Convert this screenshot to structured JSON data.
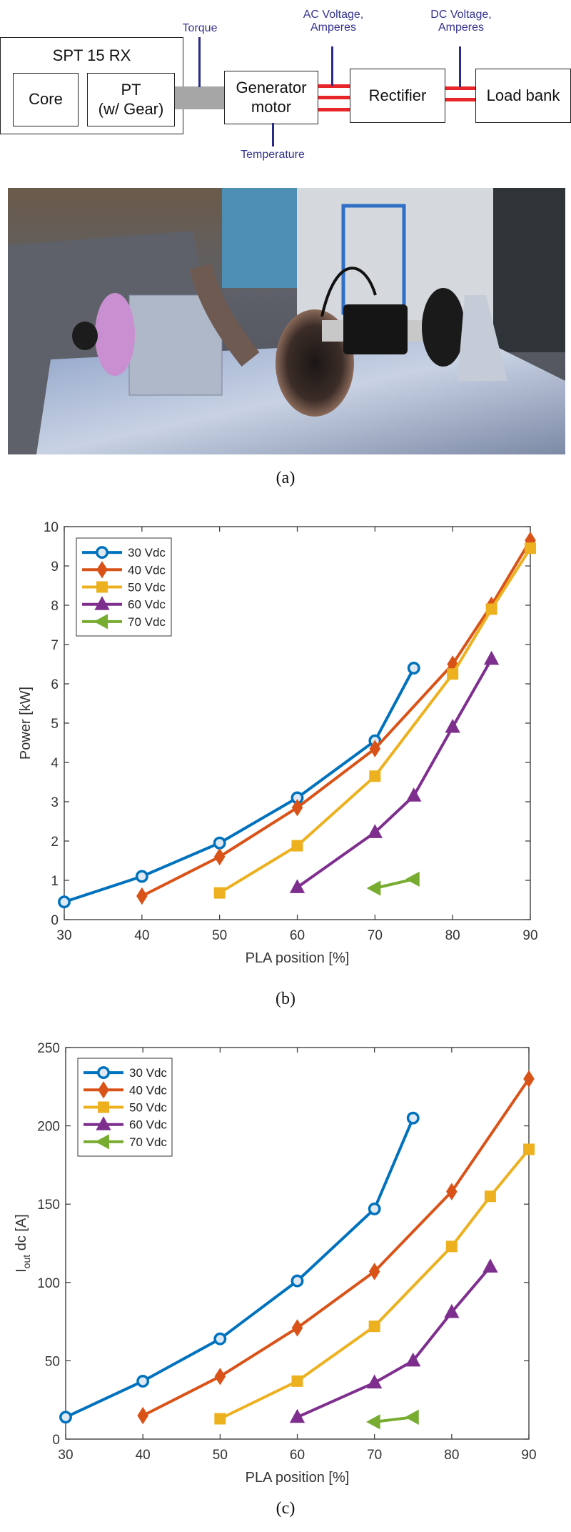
{
  "diagram": {
    "system_label": "SPT 15 RX",
    "core_label": "Core",
    "pt_label": "PT\n(w/ Gear)",
    "pt_line1": "PT",
    "pt_line2": "(w/ Gear)",
    "generator_line1": "Generator",
    "generator_line2": "motor",
    "rectifier_label": "Rectifier",
    "loadbank_label": "Load bank",
    "torque_label": "Torque",
    "temperature_label": "Temperature",
    "ac_label_line1": "AC Voltage,",
    "ac_label_line2": "Amperes",
    "dc_label_line1": "DC Voltage,",
    "dc_label_line2": "Amperes",
    "colors": {
      "sensor_line": "#2a2a8a",
      "sensor_text": "#33338f",
      "wire": "#e8262a",
      "shaft": "#a6a6a6"
    }
  },
  "captions": {
    "a": "(a)",
    "b": "(b)",
    "c": "(c)"
  },
  "chart_data": [
    {
      "type": "line",
      "xlabel": "PLA position [%]",
      "ylabel": "Power [kW]",
      "xlim": [
        30,
        90
      ],
      "ylim": [
        0,
        10
      ],
      "xticks": [
        30,
        40,
        50,
        60,
        70,
        80,
        90
      ],
      "yticks": [
        0,
        1,
        2,
        3,
        4,
        5,
        6,
        7,
        8,
        9,
        10
      ],
      "grid": false,
      "legend": "top-left",
      "series": [
        {
          "name": "30 Vdc",
          "color": "#0072BD",
          "marker": "circle",
          "x": [
            30,
            40,
            50,
            60,
            70,
            75
          ],
          "y": [
            0.45,
            1.1,
            1.95,
            3.1,
            4.55,
            6.4
          ]
        },
        {
          "name": "40 Vdc",
          "color": "#D95319",
          "marker": "diamond",
          "x": [
            40,
            50,
            60,
            70,
            80,
            85,
            90
          ],
          "y": [
            0.6,
            1.6,
            2.85,
            4.35,
            6.5,
            8.0,
            9.65
          ]
        },
        {
          "name": "50 Vdc",
          "color": "#EDB120",
          "marker": "square",
          "x": [
            50,
            60,
            70,
            80,
            85,
            90
          ],
          "y": [
            0.68,
            1.88,
            3.65,
            6.25,
            7.9,
            9.45
          ]
        },
        {
          "name": "60 Vdc",
          "color": "#7E2F8E",
          "marker": "triangle-up",
          "x": [
            60,
            70,
            75,
            80,
            85
          ],
          "y": [
            0.82,
            2.22,
            3.15,
            4.9,
            6.63
          ]
        },
        {
          "name": "70 Vdc",
          "color": "#77AC30",
          "marker": "triangle-left",
          "x": [
            70,
            75
          ],
          "y": [
            0.8,
            1.03
          ]
        }
      ]
    },
    {
      "type": "line",
      "xlabel": "PLA position [%]",
      "ylabel": "I_out dc [A]",
      "ylabel_main": "I",
      "ylabel_sub": "out",
      "ylabel_rest": " dc [A]",
      "xlim": [
        30,
        90
      ],
      "ylim": [
        0,
        250
      ],
      "xticks": [
        30,
        40,
        50,
        60,
        70,
        80,
        90
      ],
      "yticks": [
        0,
        50,
        100,
        150,
        200,
        250
      ],
      "grid": false,
      "legend": "top-left",
      "series": [
        {
          "name": "30 Vdc",
          "color": "#0072BD",
          "marker": "circle",
          "x": [
            30,
            40,
            50,
            60,
            70,
            75
          ],
          "y": [
            14,
            37,
            64,
            101,
            147,
            205
          ]
        },
        {
          "name": "40 Vdc",
          "color": "#D95319",
          "marker": "diamond",
          "x": [
            40,
            50,
            60,
            70,
            80,
            90
          ],
          "y": [
            15,
            40,
            71,
            107,
            158,
            230
          ]
        },
        {
          "name": "50 Vdc",
          "color": "#EDB120",
          "marker": "square",
          "x": [
            50,
            60,
            70,
            80,
            85,
            90
          ],
          "y": [
            13,
            37,
            72,
            123,
            155,
            185
          ]
        },
        {
          "name": "60 Vdc",
          "color": "#7E2F8E",
          "marker": "triangle-up",
          "x": [
            60,
            70,
            75,
            80,
            85
          ],
          "y": [
            14,
            36,
            50,
            81,
            110
          ]
        },
        {
          "name": "70 Vdc",
          "color": "#77AC30",
          "marker": "triangle-left",
          "x": [
            70,
            75
          ],
          "y": [
            11,
            14
          ]
        }
      ]
    }
  ]
}
